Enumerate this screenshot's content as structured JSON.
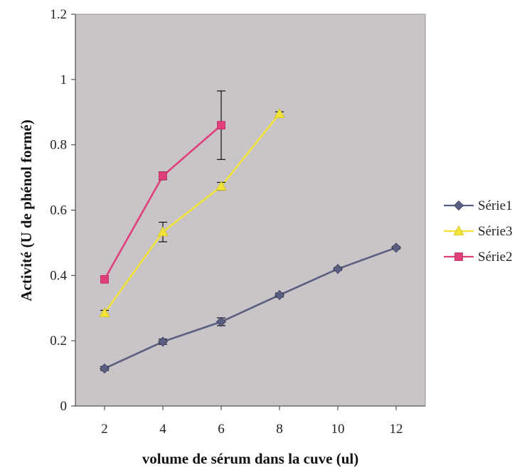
{
  "chart_data": {
    "type": "line",
    "title": "",
    "xlabel": "volume de sérum dans la cuve (ul)",
    "ylabel": "Activité (U de phénol formé)",
    "xlim": [
      1,
      13
    ],
    "ylim": [
      0,
      1.2
    ],
    "xticks": [
      2,
      4,
      6,
      8,
      10,
      12
    ],
    "yticks": [
      0,
      0.2,
      0.4,
      0.6,
      0.8,
      1,
      1.2
    ],
    "ytick_labels": [
      "0",
      "0.2",
      "0.4",
      "0.6",
      "0.8",
      "1",
      "1.2"
    ],
    "grid": false,
    "legend_position": "right",
    "plot_background": "#c8c4c7",
    "series": [
      {
        "name": "Série1",
        "color": "#5a5e80",
        "marker": "diamond",
        "x": [
          2,
          4,
          6,
          8,
          10,
          12
        ],
        "y": [
          0.115,
          0.197,
          0.258,
          0.34,
          0.42,
          0.485
        ],
        "error": [
          0.006,
          0.008,
          0.012,
          0.006,
          0.004,
          0.004
        ]
      },
      {
        "name": "Série3",
        "color": "#f2e33a",
        "marker": "triangle",
        "x": [
          2,
          4,
          6,
          8
        ],
        "y": [
          0.285,
          0.533,
          0.673,
          0.895
        ],
        "error": [
          0.008,
          0.03,
          0.012,
          0.006
        ]
      },
      {
        "name": "Série2",
        "color": "#e0407a",
        "marker": "square",
        "x": [
          2,
          4,
          6
        ],
        "y": [
          0.388,
          0.705,
          0.86
        ],
        "error": [
          0.006,
          0.012,
          0.105
        ]
      }
    ]
  }
}
